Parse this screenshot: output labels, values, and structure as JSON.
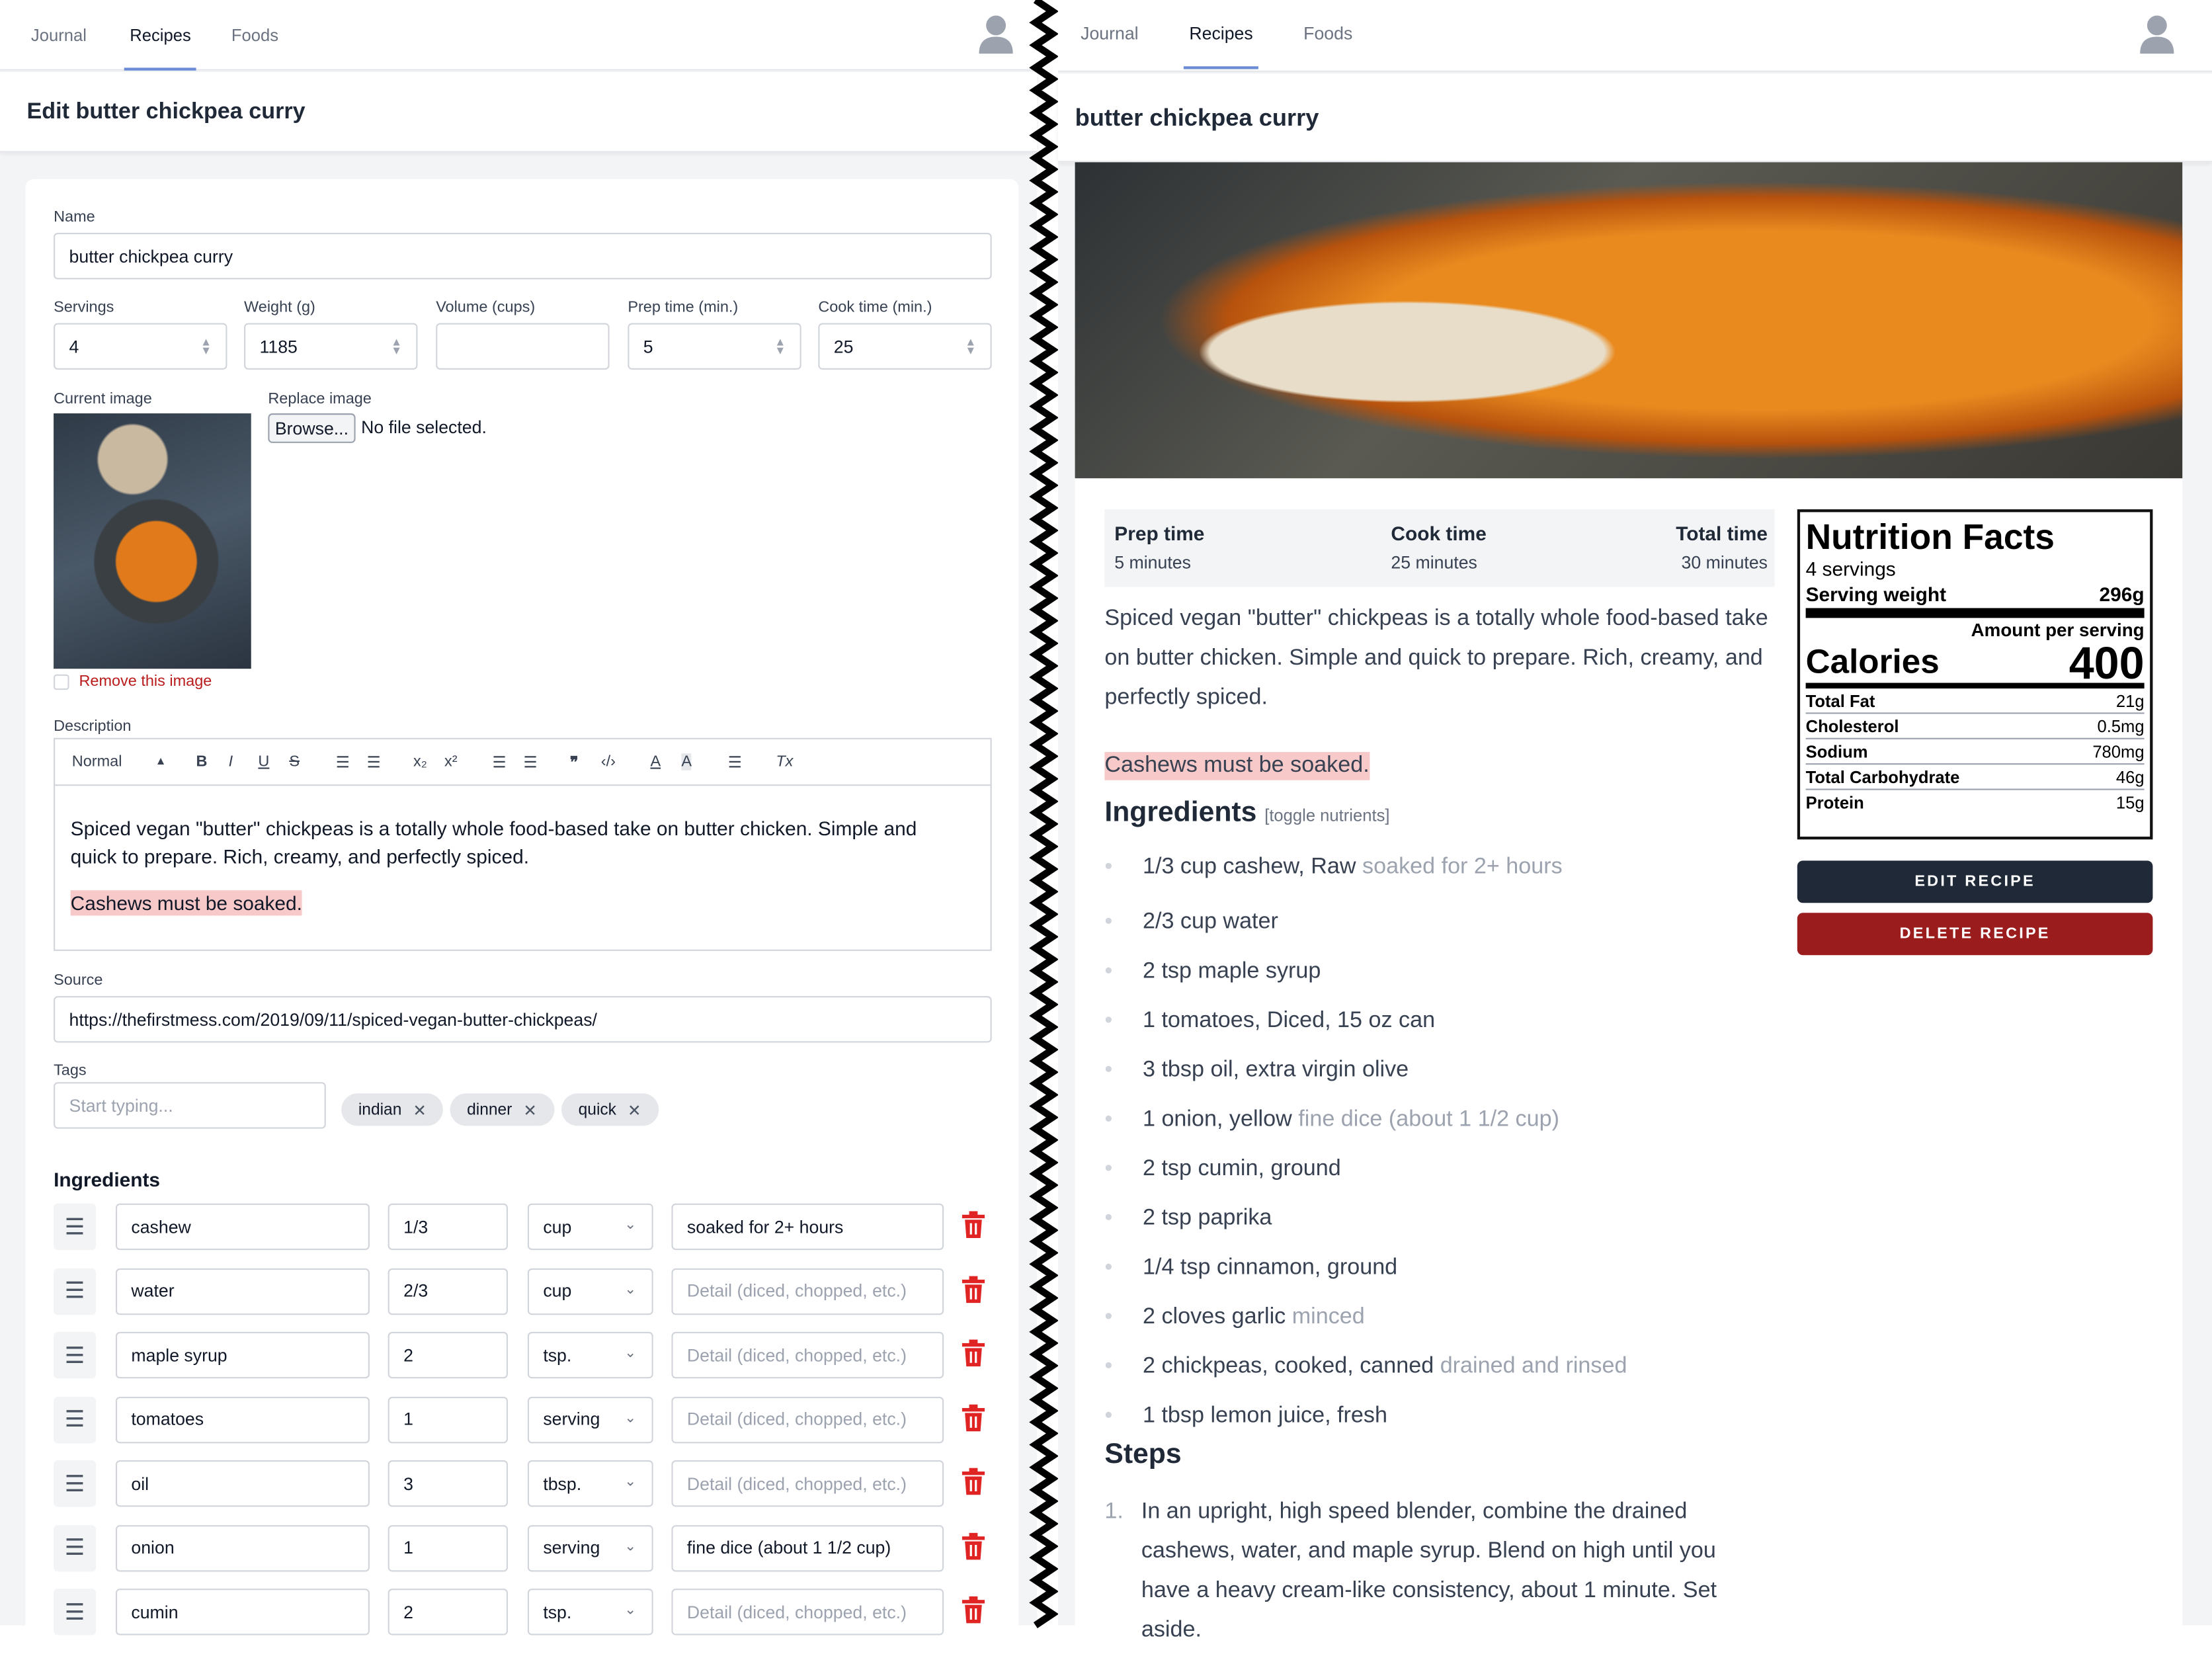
{
  "left": {
    "nav": {
      "tabs": [
        "Journal",
        "Recipes",
        "Foods"
      ],
      "active": "Recipes"
    },
    "title": "Edit butter chickpea curry",
    "form": {
      "name_label": "Name",
      "name_value": "butter chickpea curry",
      "fields": [
        {
          "label": "Servings",
          "value": "4",
          "spinner": true
        },
        {
          "label": "Weight (g)",
          "value": "1185",
          "spinner": true
        },
        {
          "label": "Volume (cups)",
          "value": "",
          "spinner": false
        },
        {
          "label": "Prep time (min.)",
          "value": "5",
          "spinner": true
        },
        {
          "label": "Cook time (min.)",
          "value": "25",
          "spinner": true
        }
      ],
      "current_image_label": "Current image",
      "replace_image_label": "Replace image",
      "browse_label": "Browse...",
      "no_file_label": "No file selected.",
      "remove_image_label": "Remove this image",
      "description_label": "Description",
      "toolbar_format": "Normal",
      "description_text": "Spiced vegan \"butter\" chickpeas is a totally whole food-based take on butter chicken. Simple and quick to prepare. Rich, creamy, and perfectly spiced.",
      "description_note": "Cashews must be soaked.",
      "source_label": "Source",
      "source_value": "https://thefirstmess.com/2019/09/11/spiced-vegan-butter-chickpeas/",
      "tags_label": "Tags",
      "tags_placeholder": "Start typing...",
      "tags": [
        "indian",
        "dinner",
        "quick"
      ],
      "ingredients_label": "Ingredients",
      "detail_placeholder": "Detail (diced, chopped, etc.)",
      "ingredients": [
        {
          "name": "cashew",
          "qty": "1/3",
          "unit": "cup",
          "detail": "soaked for 2+ hours"
        },
        {
          "name": "water",
          "qty": "2/3",
          "unit": "cup",
          "detail": ""
        },
        {
          "name": "maple syrup",
          "qty": "2",
          "unit": "tsp.",
          "detail": ""
        },
        {
          "name": "tomatoes",
          "qty": "1",
          "unit": "serving",
          "detail": ""
        },
        {
          "name": "oil",
          "qty": "3",
          "unit": "tbsp.",
          "detail": ""
        },
        {
          "name": "onion",
          "qty": "1",
          "unit": "serving",
          "detail": "fine dice (about 1 1/2 cup)"
        },
        {
          "name": "cumin",
          "qty": "2",
          "unit": "tsp.",
          "detail": ""
        }
      ]
    }
  },
  "right": {
    "nav": {
      "tabs": [
        "Journal",
        "Recipes",
        "Foods"
      ],
      "active": "Recipes"
    },
    "title": "butter chickpea curry",
    "times": [
      {
        "label": "Prep time",
        "value": "5 minutes"
      },
      {
        "label": "Cook time",
        "value": "25 minutes"
      },
      {
        "label": "Total time",
        "value": "30 minutes"
      }
    ],
    "description": "Spiced vegan \"butter\" chickpeas is a totally whole food-based take on butter chicken. Simple and quick to prepare. Rich, creamy, and perfectly spiced.",
    "note": "Cashews must be soaked.",
    "ingredients_heading": "Ingredients",
    "toggle_nutrients": "[toggle nutrients]",
    "ingredients": [
      {
        "main": "1/3 cup cashew, Raw",
        "detail": "soaked for 2+ hours"
      },
      {
        "main": "2/3 cup water",
        "detail": ""
      },
      {
        "main": "2 tsp maple syrup",
        "detail": ""
      },
      {
        "main": "1 tomatoes, Diced, 15 oz can",
        "detail": ""
      },
      {
        "main": "3 tbsp oil, extra virgin olive",
        "detail": ""
      },
      {
        "main": "1 onion, yellow",
        "detail": "fine dice (about 1 1/2 cup)"
      },
      {
        "main": "2 tsp cumin, ground",
        "detail": ""
      },
      {
        "main": "2 tsp paprika",
        "detail": ""
      },
      {
        "main": "1/4 tsp cinnamon, ground",
        "detail": ""
      },
      {
        "main": "2 cloves garlic",
        "detail": "minced"
      },
      {
        "main": "2 chickpeas, cooked, canned",
        "detail": "drained and rinsed"
      },
      {
        "main": "1 tbsp lemon juice, fresh",
        "detail": ""
      }
    ],
    "steps_heading": "Steps",
    "steps": [
      {
        "num": "1.",
        "text": "In an upright, high speed blender, combine the drained cashews, water, and maple syrup. Blend on high until you have a heavy cream-like consistency, about 1 minute. Set aside."
      }
    ],
    "nutrition": {
      "title": "Nutrition Facts",
      "servings": "4 servings",
      "serving_weight_label": "Serving weight",
      "serving_weight": "296g",
      "amount_label": "Amount per serving",
      "calories_label": "Calories",
      "calories": "400",
      "rows": [
        {
          "label": "Total Fat",
          "value": "21g"
        },
        {
          "label": "Cholesterol",
          "value": "0.5mg"
        },
        {
          "label": "Sodium",
          "value": "780mg"
        },
        {
          "label": "Total Carbohydrate",
          "value": "46g"
        },
        {
          "label": "Protein",
          "value": "15g"
        }
      ]
    },
    "edit_label": "EDIT RECIPE",
    "delete_label": "DELETE RECIPE"
  },
  "colors": {
    "accent": "#6b8bd6",
    "danger": "#9b1c1c",
    "dark": "#1f2937",
    "highlight": "#f8c9c9",
    "trash": "#e02424"
  }
}
